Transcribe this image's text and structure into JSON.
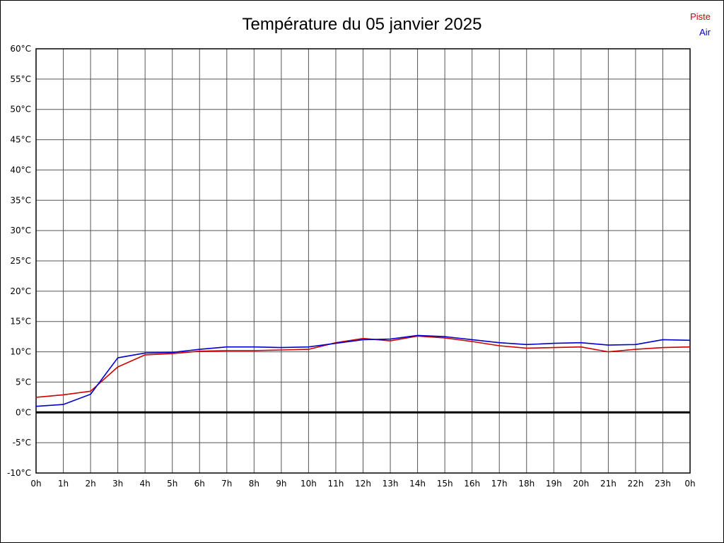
{
  "title": "Température du 05 janvier 2025",
  "colors": {
    "piste": "#cc0000",
    "air": "#0000cc",
    "grid": "#555555",
    "axis": "#000000",
    "zero_line": "#000000"
  },
  "legend": {
    "position": "top-right",
    "items": [
      {
        "label": "Piste",
        "color": "#cc0000"
      },
      {
        "label": "Air",
        "color": "#0000cc"
      }
    ]
  },
  "chart_data": {
    "type": "line",
    "title": "Température du 05 janvier 2025",
    "xlabel": "",
    "ylabel": "",
    "ylim": [
      -10,
      60
    ],
    "y_tick_step": 5,
    "grid": true,
    "legend_position": "top-right",
    "x": [
      0,
      1,
      2,
      3,
      4,
      5,
      6,
      7,
      8,
      9,
      10,
      11,
      12,
      13,
      14,
      15,
      16,
      17,
      18,
      19,
      20,
      21,
      22,
      23,
      24
    ],
    "x_tick_labels": [
      "0h",
      "1h",
      "2h",
      "3h",
      "4h",
      "5h",
      "6h",
      "7h",
      "8h",
      "9h",
      "10h",
      "11h",
      "12h",
      "13h",
      "14h",
      "15h",
      "16h",
      "17h",
      "18h",
      "19h",
      "20h",
      "21h",
      "22h",
      "23h",
      "0h"
    ],
    "y_tick_labels": [
      "60°C",
      "55°C",
      "50°C",
      "45°C",
      "40°C",
      "35°C",
      "30°C",
      "25°C",
      "20°C",
      "15°C",
      "10°C",
      "5°C",
      "0°C",
      "-5°C",
      "-10°C"
    ],
    "series": [
      {
        "name": "Piste",
        "color": "#cc0000",
        "values": [
          2.5,
          2.9,
          3.5,
          7.5,
          9.5,
          9.7,
          10.1,
          10.2,
          10.2,
          10.3,
          10.4,
          11.5,
          12.2,
          11.8,
          12.6,
          12.3,
          11.7,
          11.0,
          10.6,
          10.7,
          10.8,
          10.0,
          10.4,
          10.7,
          10.8
        ]
      },
      {
        "name": "Air",
        "color": "#0000cc",
        "values": [
          1.0,
          1.3,
          3.0,
          9.0,
          9.8,
          9.9,
          10.4,
          10.8,
          10.8,
          10.7,
          10.8,
          11.4,
          12.0,
          12.1,
          12.7,
          12.5,
          12.0,
          11.5,
          11.2,
          11.4,
          11.5,
          11.1,
          11.2,
          12.0,
          11.9
        ]
      }
    ]
  }
}
